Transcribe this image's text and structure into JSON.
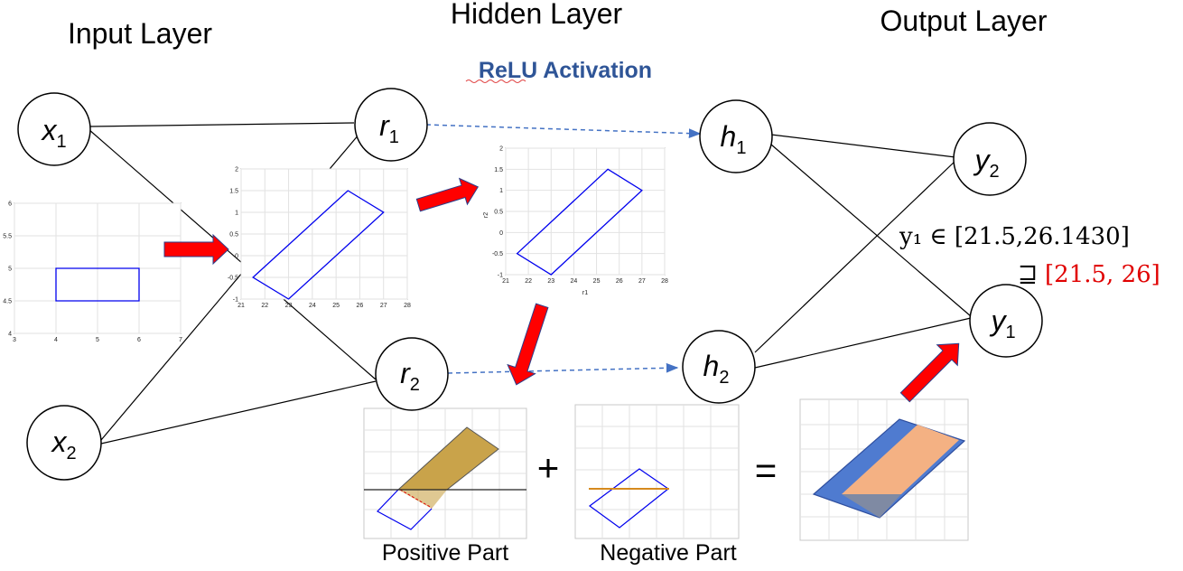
{
  "layers": {
    "input": "Input Layer",
    "hidden": "Hidden Layer",
    "output": "Output Layer"
  },
  "activation": "ReLU Activation",
  "nodes": {
    "x1": {
      "base": "x",
      "sub": "1"
    },
    "x2": {
      "base": "x",
      "sub": "2"
    },
    "r1": {
      "base": "r",
      "sub": "1"
    },
    "r2": {
      "base": "r",
      "sub": "2"
    },
    "h1": {
      "base": "h",
      "sub": "1"
    },
    "h2": {
      "base": "h",
      "sub": "2"
    },
    "y2": {
      "base": "y",
      "sub": "2"
    },
    "y1": {
      "base": "y",
      "sub": "1"
    }
  },
  "annotation": {
    "line1": "y₁ ∈ [21.5,26.1430]",
    "line2_symbol": "⊒",
    "line2_value": "[21.5, 26]",
    "line2_color": "#e00000"
  },
  "plots": {
    "input_box": {
      "x_ticks": [
        "3",
        "4",
        "5",
        "6",
        "7"
      ],
      "y_ticks": [
        "6",
        "5.5",
        "5",
        "4.5",
        "4"
      ],
      "rect": {
        "x": [
          4,
          6
        ],
        "y": [
          4.5,
          5
        ]
      }
    },
    "parallelogram_1": {
      "x_ticks": [
        "21",
        "22",
        "23",
        "24",
        "25",
        "26",
        "27",
        "28"
      ],
      "y_ticks": [
        "2",
        "1.5",
        "1",
        "0.5",
        "0",
        "-0.5",
        "-1"
      ],
      "vertices": [
        [
          21.5,
          -0.5
        ],
        [
          25.5,
          1.5
        ],
        [
          27,
          1
        ],
        [
          23,
          -1
        ]
      ]
    },
    "parallelogram_2": {
      "x_ticks": [
        "21",
        "22",
        "23",
        "24",
        "25",
        "26",
        "27",
        "28"
      ],
      "y_ticks": [
        "2",
        "1.5",
        "1",
        "0.5",
        "0",
        "-0.5",
        "-1"
      ],
      "xlabel": "r1",
      "ylabel": "r2",
      "vertices": [
        [
          21.5,
          -0.5
        ],
        [
          25.5,
          1.5
        ],
        [
          27,
          1
        ],
        [
          23,
          -1
        ]
      ]
    }
  },
  "operators": {
    "plus": "+",
    "equals": "="
  },
  "captions": {
    "positive": "Positive Part",
    "negative": "Negative Part"
  },
  "colors": {
    "arrow_fill": "#ff0000",
    "arrow_edge": "#2b3f8c",
    "polygon_stroke": "#0000ee",
    "dashed_arrow": "#4472c4",
    "activation_text": "#2f5597",
    "positive_fill": "#c9a34a",
    "negative_line": "#d68a1e",
    "result_blue": "#4f7bd0",
    "result_orange": "#f4b183"
  }
}
